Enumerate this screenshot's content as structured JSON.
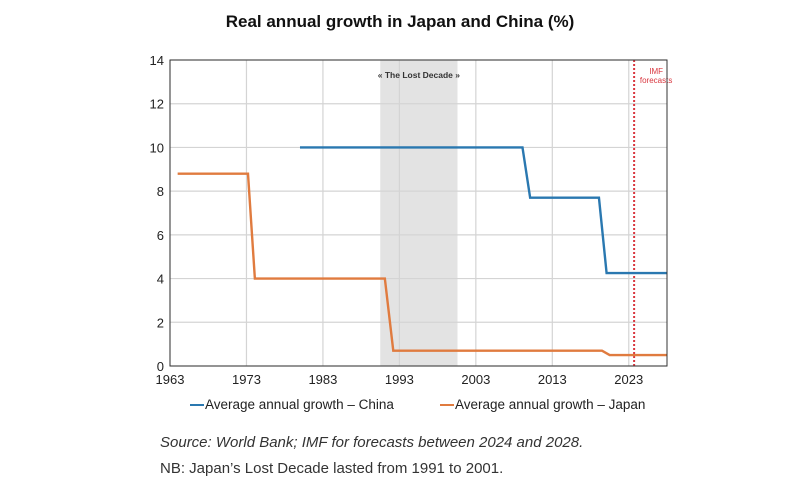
{
  "chart_data": {
    "type": "line",
    "title": "Real annual growth in Japan and China (%)",
    "xlim": [
      1963,
      2028
    ],
    "ylim": [
      0,
      14
    ],
    "x_ticks": [
      1963,
      1973,
      1983,
      1993,
      2003,
      2013,
      2023
    ],
    "y_ticks": [
      0,
      2,
      4,
      6,
      8,
      10,
      12,
      14
    ],
    "grid": true,
    "legend_position": "bottom",
    "shaded_region": {
      "label": "« The Lost Decade »",
      "x": [
        1990.5,
        2000.6
      ],
      "color": "#e3e3e3"
    },
    "forecast_line": {
      "label_line1": "IMF",
      "label_line2": "forecasts",
      "x": 2023.7,
      "color": "#d9363e"
    },
    "series": [
      {
        "name": "Average annual growth – China",
        "color": "#2a78b0",
        "points": [
          [
            1980,
            10.0
          ],
          [
            2009.1,
            10.0
          ],
          [
            2010.1,
            7.7
          ],
          [
            2019.1,
            7.7
          ],
          [
            2020.1,
            4.25
          ],
          [
            2028,
            4.25
          ]
        ]
      },
      {
        "name": "Average annual growth – Japan",
        "color": "#e07b3f",
        "points": [
          [
            1964,
            8.8
          ],
          [
            1973.2,
            8.8
          ],
          [
            1974.1,
            4.0
          ],
          [
            1991.1,
            4.0
          ],
          [
            1992.2,
            0.7
          ],
          [
            2019.5,
            0.7
          ],
          [
            2020.5,
            0.5
          ],
          [
            2028,
            0.5
          ]
        ]
      }
    ]
  },
  "source": "Source: World Bank; IMF for forecasts between 2024 and 2028.",
  "note": "NB: Japan’s Lost Decade lasted from 1991 to 2001."
}
